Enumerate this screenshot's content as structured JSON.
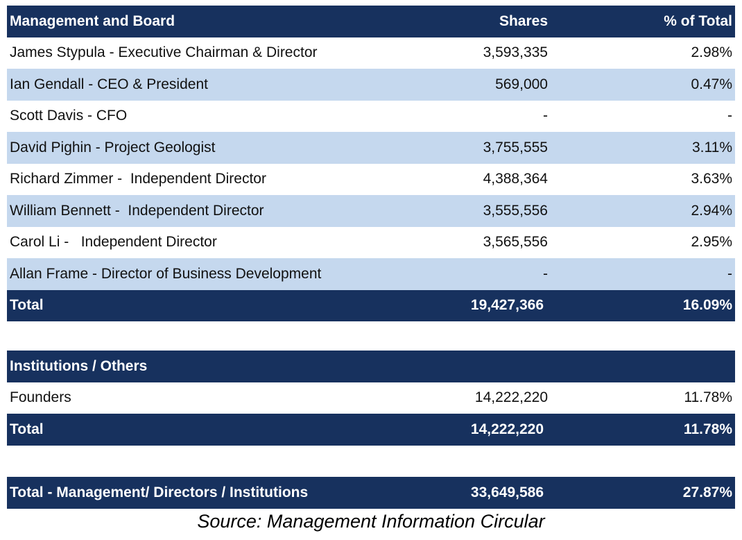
{
  "management": {
    "header": {
      "name": "Management and Board",
      "shares": "Shares",
      "pct": "% of Total"
    },
    "rows": [
      {
        "name": "James Stypula - Executive Chairman & Director",
        "shares": "3,593,335",
        "pct": "2.98%"
      },
      {
        "name": "Ian Gendall - CEO & President",
        "shares": "569,000",
        "pct": "0.47%"
      },
      {
        "name": "Scott Davis - CFO",
        "shares": "-",
        "pct": "-"
      },
      {
        "name": "David Pighin - Project Geologist",
        "shares": "3,755,555",
        "pct": "3.11%"
      },
      {
        "name": "Richard Zimmer -  Independent Director",
        "shares": "4,388,364",
        "pct": "3.63%"
      },
      {
        "name": "William Bennett -  Independent Director",
        "shares": "3,555,556",
        "pct": "2.94%"
      },
      {
        "name": "Carol Li -   Independent Director",
        "shares": "3,565,556",
        "pct": "2.95%"
      },
      {
        "name": "Allan Frame - Director of Business Development",
        "shares": "-",
        "pct": "-"
      }
    ],
    "total": {
      "name": "Total",
      "shares": "19,427,366",
      "pct": "16.09%"
    }
  },
  "institutions": {
    "header": {
      "name": "Institutions / Others"
    },
    "rows": [
      {
        "name": "Founders",
        "shares": "14,222,220",
        "pct": "11.78%"
      }
    ],
    "total": {
      "name": "Total",
      "shares": "14,222,220",
      "pct": "11.78%"
    }
  },
  "grand_total": {
    "name": "Total - Management/ Directors / Institutions",
    "shares": "33,649,586",
    "pct": "27.87%"
  },
  "source": "Source: Management Information Circular",
  "colors": {
    "navy": "#17315e",
    "light_blue": "#c5d8ee"
  }
}
